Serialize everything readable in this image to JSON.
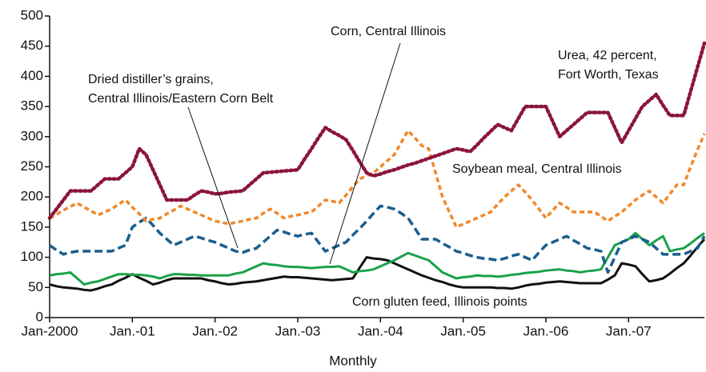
{
  "chart_data": {
    "type": "line",
    "x_label": "Monthly",
    "categories": [
      "Jan-2000",
      null,
      null,
      null,
      null,
      null,
      null,
      null,
      null,
      null,
      null,
      null,
      "Jan.-01",
      null,
      null,
      null,
      null,
      null,
      null,
      null,
      null,
      null,
      null,
      null,
      "Jan.-02",
      null,
      null,
      null,
      null,
      null,
      null,
      null,
      null,
      null,
      null,
      null,
      "Jan.-03",
      null,
      null,
      null,
      null,
      null,
      null,
      null,
      null,
      null,
      null,
      null,
      "Jan.-04",
      null,
      null,
      null,
      null,
      null,
      null,
      null,
      null,
      null,
      null,
      null,
      "Jan.-05",
      null,
      null,
      null,
      null,
      null,
      null,
      null,
      null,
      null,
      null,
      null,
      "Jan.-06",
      null,
      null,
      null,
      null,
      null,
      null,
      null,
      null,
      null,
      null,
      null,
      "Jan.-07",
      null,
      null,
      null,
      null,
      null,
      null,
      null,
      null,
      null,
      null,
      null
    ],
    "ylim": [
      0,
      500
    ],
    "yticks": [
      0,
      50,
      100,
      150,
      200,
      250,
      300,
      350,
      400,
      450,
      500
    ],
    "series": [
      {
        "name": "Urea, 42 percent, Fort Worth, Texas",
        "color": "#8b1538",
        "style": "dotted",
        "values": [
          165,
          180,
          195,
          210,
          210,
          210,
          210,
          220,
          230,
          230,
          230,
          240,
          250,
          280,
          270,
          245,
          220,
          195,
          195,
          195,
          195,
          203,
          210,
          208,
          205,
          206,
          208,
          209,
          210,
          220,
          230,
          240,
          241,
          242,
          243,
          244,
          245,
          263,
          280,
          298,
          315,
          308,
          302,
          295,
          277,
          258,
          240,
          235,
          238,
          242,
          245,
          249,
          253,
          256,
          260,
          264,
          268,
          272,
          276,
          280,
          278,
          275,
          286,
          298,
          309,
          320,
          315,
          310,
          330,
          350,
          350,
          350,
          350,
          325,
          300,
          310,
          320,
          330,
          340,
          340,
          340,
          340,
          315,
          290,
          310,
          330,
          350,
          360,
          370,
          352,
          335,
          335,
          335,
          375,
          415,
          455
        ]
      },
      {
        "name": "Soybean meal, Central Illinois",
        "color": "#f0882c",
        "style": "short-dash",
        "values": [
          165,
          171,
          178,
          184,
          190,
          183,
          177,
          170,
          175,
          180,
          188,
          195,
          183,
          172,
          160,
          163,
          165,
          172,
          178,
          185,
          180,
          175,
          170,
          165,
          160,
          158,
          155,
          158,
          160,
          163,
          165,
          173,
          180,
          173,
          165,
          168,
          170,
          173,
          175,
          185,
          195,
          193,
          190,
          203,
          217,
          230,
          235,
          240,
          250,
          260,
          270,
          290,
          310,
          298,
          285,
          280,
          240,
          200,
          175,
          150,
          155,
          160,
          165,
          170,
          175,
          188,
          200,
          210,
          220,
          208,
          195,
          180,
          165,
          178,
          190,
          183,
          175,
          175,
          175,
          175,
          168,
          160,
          168,
          175,
          185,
          195,
          203,
          210,
          200,
          190,
          205,
          220,
          220,
          250,
          278,
          305
        ]
      },
      {
        "name": "Dried distiller’s grains, Central Illinois/Eastern Corn Belt",
        "color": "#1b5e8c",
        "style": "dashed",
        "values": [
          120,
          112,
          105,
          108,
          110,
          110,
          110,
          110,
          110,
          110,
          115,
          120,
          150,
          158,
          165,
          153,
          140,
          130,
          120,
          125,
          130,
          135,
          132,
          128,
          125,
          120,
          115,
          110,
          108,
          112,
          115,
          125,
          135,
          145,
          142,
          138,
          135,
          138,
          140,
          125,
          110,
          115,
          120,
          125,
          137,
          148,
          160,
          173,
          185,
          183,
          180,
          173,
          165,
          148,
          130,
          130,
          130,
          123,
          117,
          110,
          107,
          103,
          100,
          98,
          97,
          95,
          98,
          102,
          105,
          100,
          95,
          108,
          120,
          125,
          130,
          135,
          128,
          122,
          115,
          113,
          110,
          75,
          100,
          125,
          130,
          135,
          130,
          125,
          115,
          105,
          105,
          105,
          105,
          110,
          115,
          135
        ]
      },
      {
        "name": "Corn, Central Illinois",
        "color": "#111111",
        "style": "solid",
        "values": [
          55,
          52,
          50,
          49,
          48,
          46,
          45,
          48,
          52,
          55,
          61,
          66,
          72,
          66,
          61,
          55,
          58,
          62,
          65,
          65,
          65,
          65,
          65,
          62,
          60,
          57,
          55,
          56,
          58,
          59,
          60,
          62,
          64,
          66,
          68,
          67,
          67,
          66,
          65,
          64,
          63,
          62,
          63,
          64,
          65,
          83,
          100,
          98,
          97,
          95,
          90,
          85,
          80,
          75,
          70,
          66,
          62,
          59,
          55,
          52,
          50,
          50,
          50,
          50,
          50,
          49,
          49,
          48,
          50,
          53,
          55,
          56,
          58,
          59,
          60,
          59,
          58,
          57,
          57,
          57,
          57,
          63,
          70,
          90,
          88,
          85,
          72,
          60,
          62,
          65,
          73,
          82,
          90,
          103,
          117,
          130
        ]
      },
      {
        "name": "Corn gluten feed, Illinois points",
        "color": "#1aa14a",
        "style": "solid",
        "values": [
          70,
          72,
          73,
          75,
          65,
          55,
          58,
          60,
          64,
          68,
          72,
          72,
          71,
          71,
          70,
          68,
          65,
          69,
          72,
          72,
          71,
          71,
          70,
          70,
          70,
          70,
          70,
          73,
          75,
          80,
          85,
          90,
          88,
          87,
          85,
          84,
          84,
          83,
          82,
          83,
          84,
          84,
          85,
          80,
          75,
          77,
          78,
          80,
          85,
          90,
          95,
          101,
          107,
          103,
          99,
          95,
          85,
          75,
          70,
          65,
          67,
          68,
          70,
          69,
          69,
          68,
          69,
          71,
          72,
          74,
          75,
          76,
          78,
          79,
          80,
          78,
          77,
          75,
          77,
          78,
          80,
          100,
          120,
          125,
          130,
          140,
          130,
          120,
          128,
          135,
          110,
          113,
          115,
          123,
          132,
          140
        ]
      }
    ],
    "annotations": [
      {
        "lines": [
          "Dried distiller’s grains,",
          "Central Illinois/Eastern Corn Belt"
        ]
      },
      {
        "lines": [
          "Corn, Central Illinois"
        ]
      },
      {
        "lines": [
          "Urea, 42 percent,",
          "Fort Worth, Texas"
        ]
      },
      {
        "lines": [
          "Soybean meal, Central Illinois"
        ]
      },
      {
        "lines": [
          "Corn gluten feed, Illinois points"
        ]
      }
    ]
  }
}
